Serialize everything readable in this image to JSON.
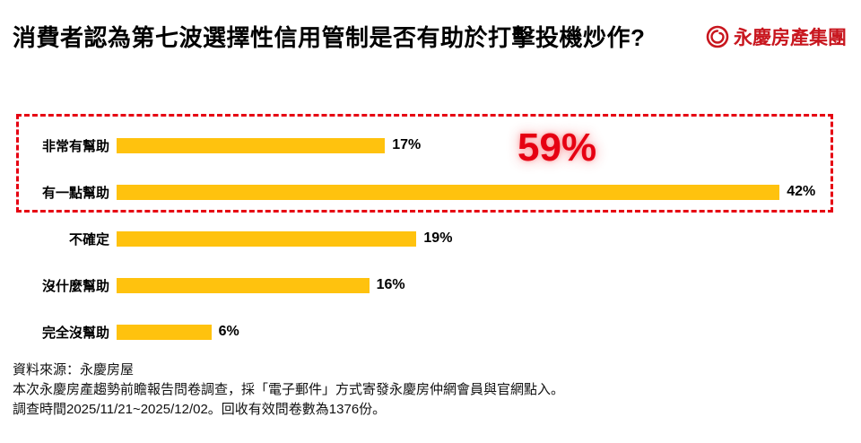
{
  "title": "消費者認為第七波選擇性信用管制是否有助於打擊投機炒作?",
  "logo": {
    "text": "永慶房產集團",
    "color": "#c8161e"
  },
  "chart_data": {
    "type": "bar",
    "orientation": "horizontal",
    "title": "消費者認為第七波選擇性信用管制是否有助於打擊投機炒作?",
    "categories": [
      "非常有幫助",
      "有一點幫助",
      "不確定",
      "沒什麼幫助",
      "完全沒幫助"
    ],
    "values": [
      17,
      42,
      19,
      16,
      6
    ],
    "value_labels": [
      "17%",
      "42%",
      "19%",
      "16%",
      "6%"
    ],
    "xlim": [
      0,
      45
    ],
    "grid": false,
    "legend": "none",
    "bar_color": "#ffc20e",
    "highlight": {
      "label": "59%",
      "categories": [
        "非常有幫助",
        "有一點幫助"
      ],
      "box_color": "#e60012"
    }
  },
  "footer": {
    "line1": "資料來源：永慶房屋",
    "line2": "本次永慶房產趨勢前瞻報告問卷調查，採「電子郵件」方式寄發永慶房仲網會員與官網點入。",
    "line3": "調查時間2025/11/21~2025/12/02。回收有效問卷數為1376份。"
  },
  "colors": {
    "bar": "#ffc20e",
    "accent_red": "#e60012",
    "logo_red": "#c8161e",
    "text": "#000000"
  }
}
